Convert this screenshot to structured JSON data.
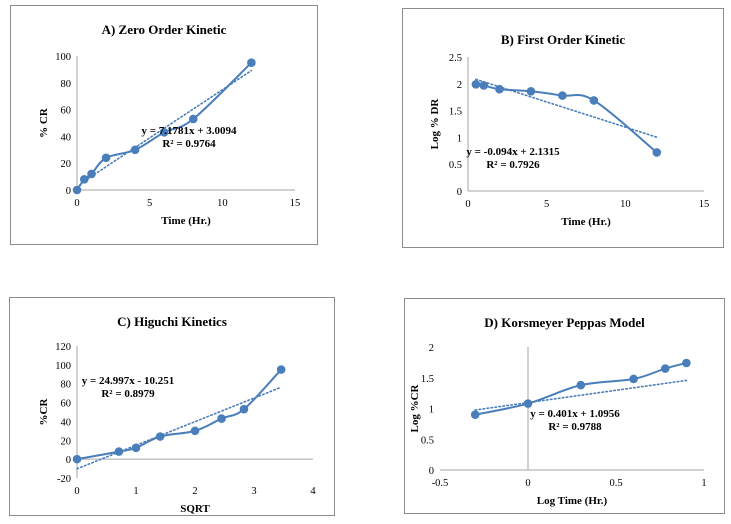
{
  "chart_data": [
    {
      "id": "A",
      "type": "line",
      "title": "A) Zero Order Kinetic",
      "xlabel": "Time (Hr.)",
      "ylabel": "% CR",
      "xlim": [
        0,
        15
      ],
      "ylim": [
        0,
        100
      ],
      "xticks": [
        0,
        5,
        10,
        15
      ],
      "yticks": [
        0,
        20,
        40,
        60,
        80,
        100
      ],
      "series": [
        {
          "x": [
            0,
            0.5,
            1,
            2,
            4,
            6,
            8,
            12
          ],
          "y": [
            0,
            8,
            12,
            24,
            30,
            43,
            53,
            95
          ]
        }
      ],
      "trendline": {
        "slope": 7.1781,
        "intercept": 3.0094,
        "x_range": [
          0.5,
          12
        ]
      },
      "equation": "y = 7.1781x + 3.0094",
      "r_squared": "R² = 0.9764",
      "colors": {
        "series": "#4a7ebb",
        "trend": "#4a7ebb"
      }
    },
    {
      "id": "B",
      "type": "line",
      "title": "B) First Order Kinetic",
      "xlabel": "Time (Hr.)",
      "ylabel": "Log % DR",
      "xlim": [
        0,
        15
      ],
      "ylim": [
        0,
        2.5
      ],
      "xticks": [
        0,
        5,
        10,
        15
      ],
      "yticks": [
        0,
        0.5,
        1,
        1.5,
        2,
        2.5
      ],
      "series": [
        {
          "x": [
            0.5,
            1,
            2,
            4,
            6,
            8,
            12
          ],
          "y": [
            1.99,
            1.97,
            1.9,
            1.86,
            1.78,
            1.69,
            0.72
          ]
        }
      ],
      "trendline": {
        "slope": -0.094,
        "intercept": 2.1315,
        "x_range": [
          0.5,
          12
        ]
      },
      "equation": "y = -0.094x + 2.1315",
      "r_squared": "R² = 0.7926",
      "colors": {
        "series": "#4a7ebb",
        "trend": "#4a7ebb"
      }
    },
    {
      "id": "C",
      "type": "line",
      "title": "C) Higuchi Kinetics",
      "xlabel": "SQRT",
      "ylabel": "%CR",
      "xlim": [
        0,
        4
      ],
      "ylim": [
        -20,
        120
      ],
      "xticks": [
        0,
        1,
        2,
        3,
        4
      ],
      "yticks": [
        -20,
        0,
        20,
        40,
        60,
        80,
        100,
        120
      ],
      "series": [
        {
          "x": [
            0,
            0.71,
            1,
            1.41,
            2,
            2.45,
            2.83,
            3.46
          ],
          "y": [
            0,
            8,
            12,
            24,
            30,
            43,
            53,
            95
          ]
        }
      ],
      "trendline": {
        "slope": 24.997,
        "intercept": -10.251,
        "x_range": [
          0,
          3.46
        ]
      },
      "equation": "y = 24.997x - 10.251",
      "r_squared": "R² = 0.8979",
      "colors": {
        "series": "#4a7ebb",
        "trend": "#4a7ebb"
      }
    },
    {
      "id": "D",
      "type": "line",
      "title": "D) Korsmeyer Peppas Model",
      "xlabel": "Log Time (Hr.)",
      "ylabel": "Log %CR",
      "xlim": [
        -0.5,
        1
      ],
      "ylim": [
        0,
        2
      ],
      "xticks": [
        -0.5,
        0,
        0.5,
        1
      ],
      "yticks": [
        0,
        0.5,
        1,
        1.5,
        2
      ],
      "series": [
        {
          "x": [
            -0.3,
            0,
            0.3,
            0.6,
            0.78,
            0.9
          ],
          "y": [
            0.9,
            1.08,
            1.38,
            1.48,
            1.65,
            1.74
          ]
        }
      ],
      "trendline": {
        "slope": 0.401,
        "intercept": 1.0956,
        "x_range": [
          -0.3,
          0.9
        ]
      },
      "equation": "y = 0.401x + 1.0956",
      "r_squared": "R² = 0.9788",
      "colors": {
        "series": "#4a7ebb",
        "trend": "#4a7ebb"
      }
    }
  ]
}
